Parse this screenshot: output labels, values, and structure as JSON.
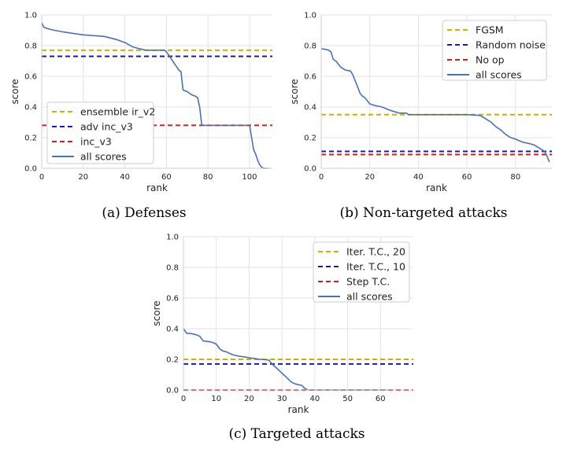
{
  "chart_data": [
    {
      "type": "line",
      "caption": "(a) Defenses",
      "xlabel": "rank",
      "ylabel": "score",
      "xlim": [
        0,
        111
      ],
      "ylim": [
        0,
        1
      ],
      "xticks": [
        "0",
        "20",
        "40",
        "60",
        "80",
        "100"
      ],
      "yticks": [
        "0.0",
        "0.2",
        "0.4",
        "0.6",
        "0.8",
        "1.0"
      ],
      "grid": true,
      "legend_position": "lower-left",
      "reference_lines": [
        {
          "name": "ensemble ir_v2",
          "value": 0.77,
          "color": "#c8b400"
        },
        {
          "name": "adv inc_v3",
          "value": 0.73,
          "color": "#1a1aa6"
        },
        {
          "name": "inc_v3",
          "value": 0.28,
          "color": "#cc2020"
        }
      ],
      "series": [
        {
          "name": "all scores",
          "color": "#4a72b0",
          "x": [
            0,
            1,
            3,
            6,
            10,
            15,
            20,
            25,
            30,
            33,
            36,
            40,
            44,
            47,
            50,
            55,
            59,
            60,
            61,
            62,
            63,
            64,
            65,
            66,
            67,
            68,
            70,
            72,
            74,
            75,
            76,
            77,
            80,
            85,
            90,
            95,
            100,
            101,
            102,
            103,
            104,
            105,
            106,
            107,
            109
          ],
          "y": [
            0.95,
            0.92,
            0.91,
            0.9,
            0.89,
            0.88,
            0.87,
            0.865,
            0.86,
            0.85,
            0.84,
            0.82,
            0.79,
            0.78,
            0.77,
            0.77,
            0.77,
            0.76,
            0.74,
            0.72,
            0.7,
            0.68,
            0.66,
            0.64,
            0.63,
            0.51,
            0.5,
            0.48,
            0.47,
            0.46,
            0.4,
            0.28,
            0.28,
            0.28,
            0.28,
            0.28,
            0.28,
            0.2,
            0.12,
            0.09,
            0.05,
            0.02,
            0.005,
            0.0,
            0.0
          ]
        }
      ]
    },
    {
      "type": "line",
      "caption": "(b) Non-targeted attacks",
      "xlabel": "rank",
      "ylabel": "score",
      "xlim": [
        0,
        95
      ],
      "ylim": [
        0,
        1
      ],
      "xticks": [
        "0",
        "20",
        "40",
        "60",
        "80"
      ],
      "yticks": [
        "0.0",
        "0.2",
        "0.4",
        "0.6",
        "0.8",
        "1.0"
      ],
      "grid": true,
      "legend_position": "upper-right",
      "reference_lines": [
        {
          "name": "FGSM",
          "value": 0.35,
          "color": "#c8b400"
        },
        {
          "name": "Random noise",
          "value": 0.11,
          "color": "#1a1aa6"
        },
        {
          "name": "No op",
          "value": 0.09,
          "color": "#cc2020"
        }
      ],
      "series": [
        {
          "name": "all scores",
          "color": "#4a72b0",
          "x": [
            0,
            2,
            3,
            4,
            5,
            6,
            7,
            8,
            10,
            12,
            13,
            14,
            15,
            16,
            17,
            18,
            19,
            20,
            22,
            25,
            28,
            30,
            32,
            35,
            36,
            37,
            40,
            50,
            60,
            65,
            66,
            68,
            70,
            72,
            74,
            76,
            78,
            80,
            83,
            86,
            88,
            90,
            92,
            93,
            94
          ],
          "y": [
            0.78,
            0.775,
            0.77,
            0.76,
            0.71,
            0.7,
            0.68,
            0.66,
            0.64,
            0.635,
            0.61,
            0.57,
            0.53,
            0.49,
            0.47,
            0.46,
            0.44,
            0.42,
            0.41,
            0.4,
            0.38,
            0.37,
            0.36,
            0.36,
            0.35,
            0.35,
            0.35,
            0.35,
            0.35,
            0.345,
            0.34,
            0.32,
            0.3,
            0.27,
            0.25,
            0.22,
            0.2,
            0.19,
            0.17,
            0.16,
            0.15,
            0.13,
            0.11,
            0.08,
            0.04
          ]
        }
      ]
    },
    {
      "type": "line",
      "caption": "(c) Targeted attacks",
      "xlabel": "rank",
      "ylabel": "score",
      "xlim": [
        0,
        70
      ],
      "ylim": [
        0,
        1
      ],
      "xticks": [
        "0",
        "10",
        "20",
        "30",
        "40",
        "50",
        "60"
      ],
      "yticks": [
        "0.0",
        "0.2",
        "0.4",
        "0.6",
        "0.8",
        "1.0"
      ],
      "grid": true,
      "legend_position": "upper-right",
      "reference_lines": [
        {
          "name": "Iter. T.C., 20",
          "value": 0.2,
          "color": "#c8b400"
        },
        {
          "name": "Iter. T.C., 10",
          "value": 0.17,
          "color": "#1a1aa6"
        },
        {
          "name": "Step T.C.",
          "value": 0.0,
          "color": "#cc2020"
        }
      ],
      "series": [
        {
          "name": "all scores",
          "color": "#4a72b0",
          "x": [
            0,
            1,
            2,
            4,
            5,
            6,
            8,
            9,
            10,
            11,
            12,
            13,
            15,
            17,
            19,
            20,
            22,
            23,
            24,
            26,
            27,
            28,
            29,
            30,
            31,
            32,
            33,
            34,
            35,
            36,
            37,
            38,
            40,
            45,
            50,
            55,
            60,
            62
          ],
          "y": [
            0.4,
            0.37,
            0.37,
            0.36,
            0.35,
            0.32,
            0.315,
            0.31,
            0.3,
            0.27,
            0.255,
            0.25,
            0.23,
            0.22,
            0.215,
            0.21,
            0.205,
            0.2,
            0.2,
            0.195,
            0.17,
            0.15,
            0.13,
            0.11,
            0.09,
            0.07,
            0.05,
            0.04,
            0.035,
            0.03,
            0.01,
            0.0,
            0.0,
            0.0,
            0.0,
            0.0,
            0.0,
            0.0
          ]
        }
      ]
    }
  ]
}
